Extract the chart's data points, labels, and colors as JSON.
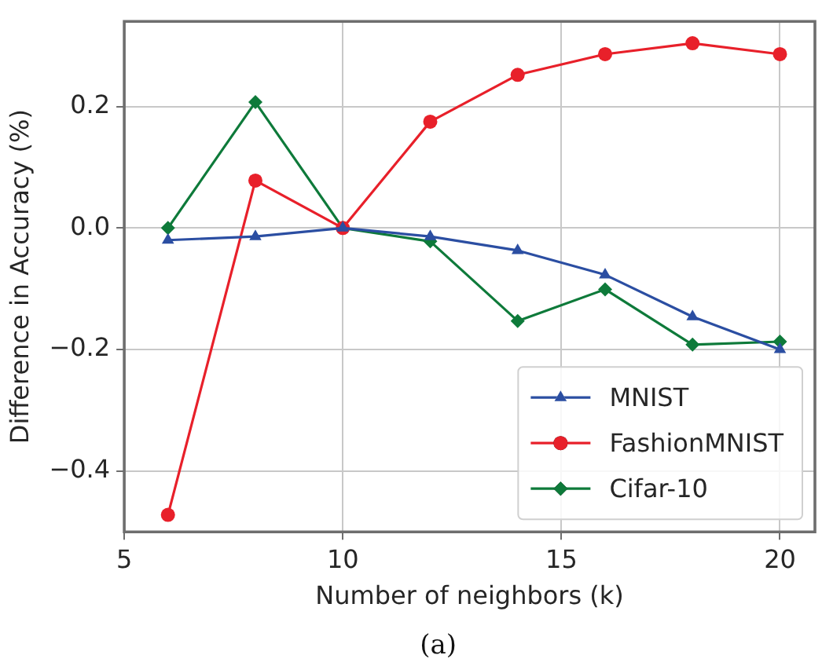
{
  "chart_data": {
    "type": "line",
    "xlabel": "Number of neighbors (k)",
    "ylabel": "Difference in Accuracy (%)",
    "annotations": [
      "(a)"
    ],
    "x": [
      6,
      8,
      10,
      12,
      14,
      16,
      18,
      20
    ],
    "xlim": [
      5,
      20.8
    ],
    "xticks": [
      5,
      10,
      15,
      20
    ],
    "ylim": [
      -0.5,
      0.34
    ],
    "yticks": [
      {
        "value": -0.4,
        "label": "−0.4"
      },
      {
        "value": -0.2,
        "label": "−0.2"
      },
      {
        "value": 0,
        "label": "0.0"
      },
      {
        "value": 0.2,
        "label": "0.2"
      }
    ],
    "grid": true,
    "legend": "bottom right",
    "line_style": "solid",
    "series": [
      {
        "name": "MNIST",
        "color": "#2b4ea2",
        "marker": "triangle",
        "values": [
          -0.02,
          -0.014,
          0,
          -0.014,
          -0.037,
          -0.077,
          -0.146,
          -0.2
        ]
      },
      {
        "name": "FashionMNIST",
        "color": "#e8202a",
        "marker": "circle",
        "values": [
          -0.472,
          0.078,
          0,
          0.175,
          0.252,
          0.286,
          0.304,
          0.286
        ]
      },
      {
        "name": "Cifar-10",
        "color": "#0e7a3a",
        "marker": "diamond",
        "values": [
          0,
          0.207,
          0,
          -0.022,
          -0.153,
          -0.101,
          -0.192,
          -0.187
        ]
      }
    ]
  }
}
